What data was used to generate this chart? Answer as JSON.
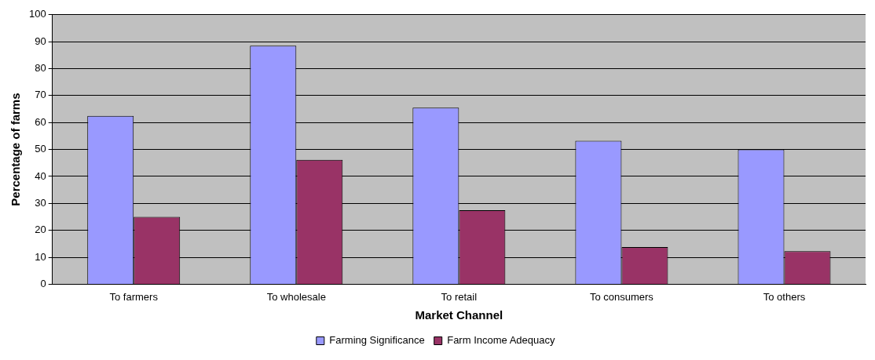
{
  "chart_data": {
    "type": "bar",
    "xlabel": "Market Channel",
    "ylabel": "Percentage of farms",
    "categories": [
      "To farmers",
      "To wholesale",
      "To retail",
      "To consumers",
      "To others"
    ],
    "series": [
      {
        "name": "Farming Significance",
        "color": "#9999ff",
        "values": [
          62.5,
          88.5,
          65.5,
          53.2,
          50
        ]
      },
      {
        "name": "Farm Income Adequacy",
        "color": "#993366",
        "values": [
          25,
          46.2,
          27.5,
          13.8,
          12.3
        ]
      }
    ],
    "ylim": [
      0,
      100
    ],
    "yticks": [
      0,
      10,
      20,
      30,
      40,
      50,
      60,
      70,
      80,
      90,
      100
    ],
    "grid": "y",
    "legend": "bottom"
  }
}
